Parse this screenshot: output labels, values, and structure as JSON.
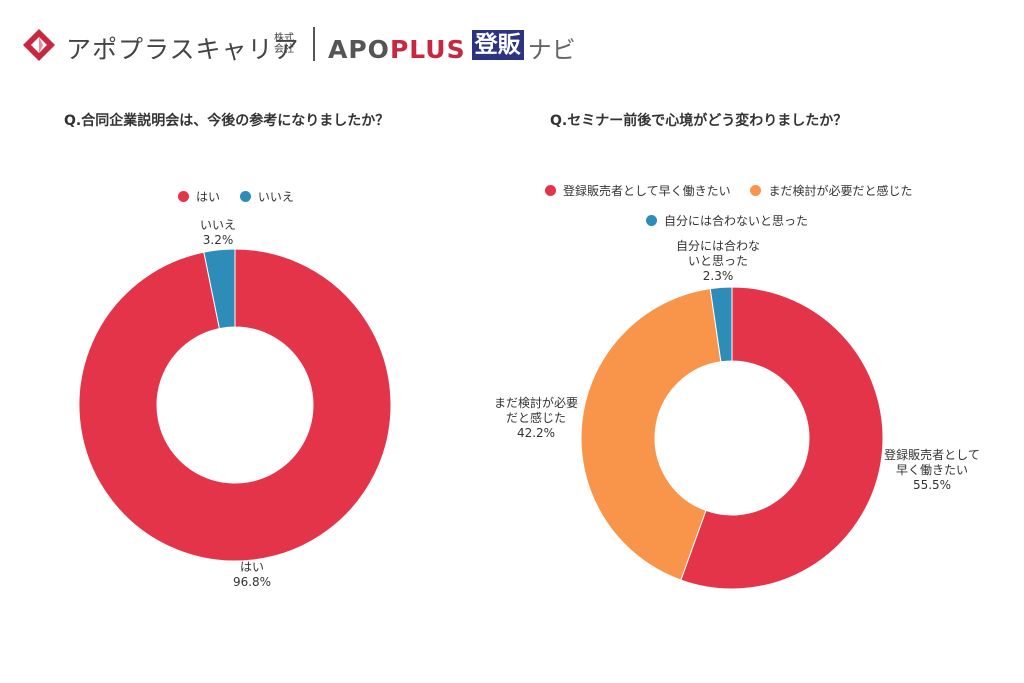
{
  "header": {
    "brand_name": "アポプラスキャリア",
    "company_type_line1": "株式",
    "company_type_line2": "会社",
    "product_apo": "APO",
    "product_plus": "PLUS",
    "product_hanbai": "登販",
    "product_navi": "ナビ",
    "colors": {
      "logo_red": "#c7283f",
      "navy": "#2c3482"
    }
  },
  "chart_data": [
    {
      "type": "pie",
      "donut": true,
      "title": "Q.合同企業説明会は、今後の参考になりましたか？",
      "legend_position": "top",
      "slices": [
        {
          "label": "はい",
          "value": 96.8,
          "color": "#e3344a",
          "value_label": "96.8%",
          "label_lines": [
            "はい"
          ]
        },
        {
          "label": "いいえ",
          "value": 3.2,
          "color": "#2e8cb8",
          "value_label": "3.2%",
          "label_lines": [
            "いいえ"
          ]
        }
      ]
    },
    {
      "type": "pie",
      "donut": true,
      "title": "Q.セミナー前後で心境がどう変わりましたか？",
      "legend_position": "top",
      "slices": [
        {
          "label": "登録販売者として早く働きたい",
          "value": 55.5,
          "color": "#e3344a",
          "value_label": "55.5%",
          "label_lines": [
            "登録販売者として",
            "早く働きたい"
          ]
        },
        {
          "label": "まだ検討が必要だと感じた",
          "value": 42.2,
          "color": "#f9954b",
          "value_label": "42.2%",
          "label_lines": [
            "まだ検討が必要",
            "だと感じた"
          ]
        },
        {
          "label": "自分には合わないと思った",
          "value": 2.3,
          "color": "#2e8cb8",
          "value_label": "2.3%",
          "label_lines": [
            "自分には合わな",
            "いと思った"
          ]
        }
      ]
    }
  ]
}
